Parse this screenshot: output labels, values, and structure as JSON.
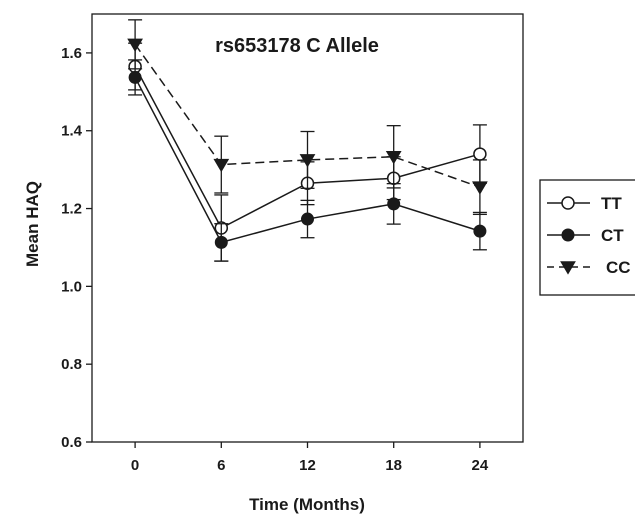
{
  "chart_data": {
    "type": "line",
    "title": "rs653178 C Allele",
    "xlabel": "Time (Months)",
    "ylabel": "Mean HAQ",
    "x": [
      0,
      6,
      12,
      18,
      24
    ],
    "xticks": [
      "0",
      "6",
      "12",
      "18",
      "24"
    ],
    "yticks": [
      "0.6",
      "0.8",
      "1.0",
      "1.2",
      "1.4",
      "1.6"
    ],
    "xlim": [
      -3,
      27
    ],
    "ylim": [
      0.6,
      1.7
    ],
    "grid": false,
    "legend_position": "right, outside plot",
    "series": [
      {
        "name": "TT",
        "marker": "open-circle",
        "line": "solid",
        "color": "#1a1a1a",
        "values": [
          1.565,
          1.15,
          1.265,
          1.278,
          1.34
        ],
        "error": [
          0.06,
          0.085,
          0.055,
          0.055,
          0.075
        ]
      },
      {
        "name": "CT",
        "marker": "filled-circle",
        "line": "solid",
        "color": "#1a1a1a",
        "values": [
          1.537,
          1.113,
          1.173,
          1.212,
          1.142
        ],
        "error": [
          0.045,
          0.048,
          0.048,
          0.052,
          0.048
        ]
      },
      {
        "name": "CC",
        "marker": "filled-triangle-down",
        "line": "dashed",
        "color": "#1a1a1a",
        "values": [
          1.622,
          1.313,
          1.325,
          1.333,
          1.255
        ],
        "error": [
          0.063,
          0.073,
          0.073,
          0.08,
          0.07
        ]
      }
    ]
  }
}
